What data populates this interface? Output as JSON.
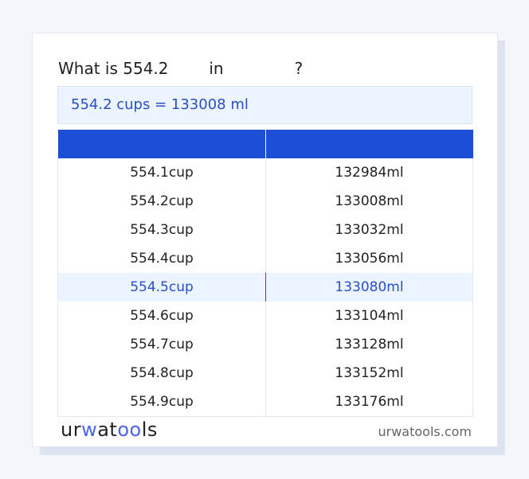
{
  "title": "What is 554.2        in              ?",
  "result": "554.2 cups = 133008 ml",
  "table": {
    "headers": [
      "",
      ""
    ],
    "rows": [
      [
        "554.1cup",
        "132984ml"
      ],
      [
        "554.2cup",
        "133008ml"
      ],
      [
        "554.3cup",
        "133032ml"
      ],
      [
        "554.4cup",
        "133056ml"
      ],
      [
        "554.5cup",
        "133080ml"
      ],
      [
        "554.6cup",
        "133104ml"
      ],
      [
        "554.7cup",
        "133128ml"
      ],
      [
        "554.8cup",
        "133152ml"
      ],
      [
        "554.9cup",
        "133176ml"
      ]
    ],
    "highlighted_row": 4
  },
  "footer": {
    "logo": [
      "ur",
      "w",
      "at",
      "oo",
      "ls"
    ],
    "site": "urwatools.com"
  },
  "colors": {
    "accent": "#1d4fd6",
    "highlight_bg": "#ebf4ff",
    "highlight_text": "#2a4fc4"
  }
}
